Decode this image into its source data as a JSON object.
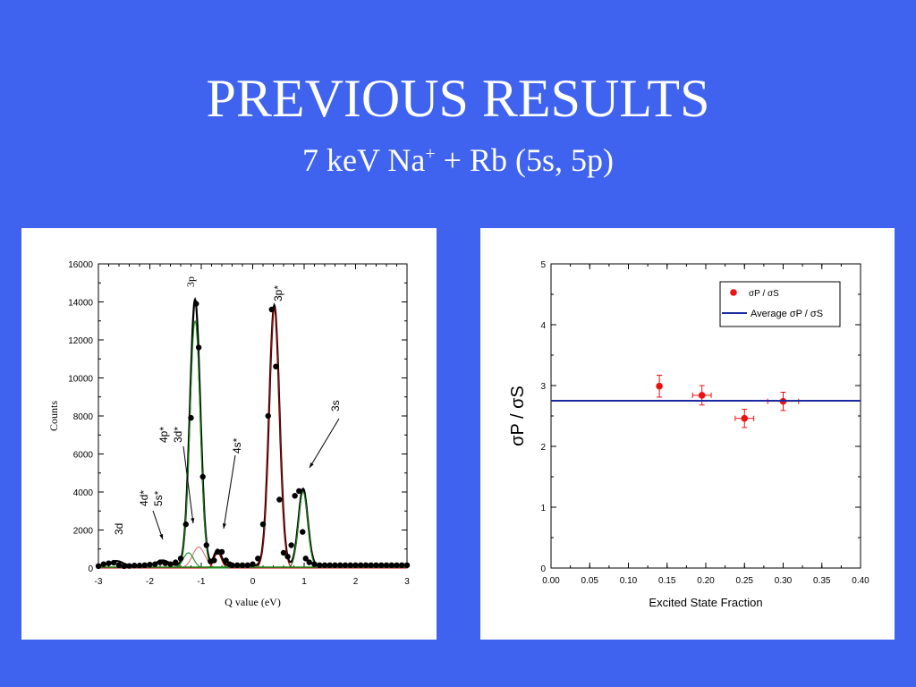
{
  "slide": {
    "title": "PREVIOUS RESULTS",
    "subtitle_main": "7 keV Na",
    "subtitle_sup": "+",
    "subtitle_rest": " + Rb (5s, 5p)"
  },
  "colors": {
    "background": "#3f63ee",
    "fit_total_black": "#000000",
    "fit_green": "#1a8a1a",
    "fit_red": "#b00000",
    "fit_pink": "#e07070",
    "ratio_marker": "#ee1111",
    "average_line": "#1b2aa0"
  },
  "chart_data": [
    {
      "type": "scatter",
      "xlabel": "Q value (eV)",
      "ylabel": "Counts",
      "xlim": [
        -3,
        3
      ],
      "ylim": [
        0,
        16000
      ],
      "x_ticks": [
        "-3",
        "-2",
        "-1",
        "0",
        "1",
        "2",
        "3"
      ],
      "y_ticks": [
        "0",
        "2000",
        "4000",
        "6000",
        "8000",
        "10000",
        "12000",
        "14000",
        "16000"
      ],
      "grid": false,
      "annotations": [
        "3p",
        "3p*",
        "3s",
        "4p*",
        "3d*",
        "4s*",
        "4d*",
        "5s*",
        "3d"
      ],
      "points": {
        "x": [
          -3.0,
          -2.9,
          -2.8,
          -2.7,
          -2.6,
          -2.5,
          -2.4,
          -2.3,
          -2.2,
          -2.1,
          -2.0,
          -1.9,
          -1.8,
          -1.7,
          -1.6,
          -1.5,
          -1.4,
          -1.3,
          -1.2,
          -1.1,
          -1.05,
          -0.97,
          -0.9,
          -0.82,
          -0.75,
          -0.68,
          -0.6,
          -0.52,
          -0.45,
          -0.4,
          -0.3,
          -0.2,
          -0.1,
          0.0,
          0.1,
          0.2,
          0.3,
          0.37,
          0.45,
          0.52,
          0.6,
          0.68,
          0.75,
          0.82,
          0.9,
          0.97,
          1.03,
          1.1,
          1.2,
          1.3,
          1.4,
          1.5,
          1.6,
          1.7,
          1.8,
          1.9,
          2.0,
          2.1,
          2.2,
          2.3,
          2.4,
          2.5,
          2.6,
          2.7,
          2.8,
          2.9,
          3.0
        ],
        "y": [
          100,
          200,
          250,
          280,
          150,
          100,
          110,
          130,
          130,
          150,
          180,
          200,
          300,
          250,
          200,
          300,
          500,
          2300,
          7900,
          13900,
          11600,
          4800,
          1200,
          350,
          400,
          850,
          850,
          400,
          200,
          150,
          150,
          150,
          150,
          200,
          500,
          2300,
          8000,
          13600,
          10600,
          3600,
          800,
          600,
          1200,
          3800,
          4050,
          1900,
          500,
          300,
          200,
          150,
          150,
          150,
          150,
          150,
          150,
          150,
          150,
          150,
          150,
          150,
          150,
          150,
          150,
          150,
          150,
          150,
          150
        ]
      },
      "fit_curves": [
        {
          "color": "#000000",
          "peaks": [
            {
              "center": -1.12,
              "amplitude": 14000,
              "width": 0.1
            },
            {
              "center": 0.42,
              "amplitude": 13700,
              "width": 0.1
            },
            {
              "center": 0.98,
              "amplitude": 4050,
              "width": 0.09
            },
            {
              "center": -0.68,
              "amplitude": 850,
              "width": 0.07
            },
            {
              "center": -2.65,
              "amplitude": 250,
              "width": 0.12
            },
            {
              "center": -1.75,
              "amplitude": 280,
              "width": 0.12
            }
          ]
        },
        {
          "color": "#1a8a1a",
          "peaks": [
            {
              "center": -1.12,
              "amplitude": 13000,
              "width": 0.1
            },
            {
              "center": 0.98,
              "amplitude": 4000,
              "width": 0.09
            }
          ]
        },
        {
          "color": "#b00000",
          "peaks": [
            {
              "center": 0.42,
              "amplitude": 13700,
              "width": 0.1
            }
          ]
        },
        {
          "color": "#e07070",
          "peaks": [
            {
              "center": -1.05,
              "amplitude": 1100,
              "width": 0.12
            }
          ]
        },
        {
          "color": "#1a8a1a",
          "peaks": [
            {
              "center": -1.25,
              "amplitude": 800,
              "width": 0.1
            }
          ]
        },
        {
          "color": "#b00000",
          "peaks": [
            {
              "center": -0.68,
              "amplitude": 800,
              "width": 0.07
            }
          ]
        }
      ]
    },
    {
      "type": "scatter",
      "xlabel": "Excited State Fraction",
      "ylabel": "σP / σS",
      "xlim": [
        0.0,
        0.4
      ],
      "ylim": [
        0,
        5
      ],
      "x_ticks": [
        "0.00",
        "0.05",
        "0.10",
        "0.15",
        "0.20",
        "0.25",
        "0.30",
        "0.35",
        "0.40"
      ],
      "y_ticks": [
        "0",
        "1",
        "2",
        "3",
        "4",
        "5"
      ],
      "grid": false,
      "legend_position": "top-right",
      "legend": [
        "σP / σS",
        "Average  σP / σS"
      ],
      "series": [
        {
          "name": "σP / σS",
          "x": [
            0.14,
            0.195,
            0.25,
            0.3
          ],
          "y": [
            2.99,
            2.84,
            2.46,
            2.74
          ],
          "x_err": [
            0.0,
            0.012,
            0.012,
            0.02
          ],
          "y_err": [
            0.18,
            0.16,
            0.15,
            0.15
          ]
        },
        {
          "name": "Average  σP / σS",
          "type": "hline",
          "y": 2.75
        }
      ]
    }
  ]
}
